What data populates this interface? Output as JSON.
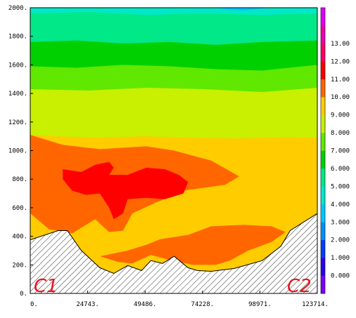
{
  "chart_data": {
    "type": "heatmap",
    "title": "",
    "xlabel": "",
    "ylabel": "",
    "x_ticks": [
      "0.",
      "24743.",
      "49486.",
      "74228.",
      "98971.",
      "123714."
    ],
    "y_ticks": [
      "0.",
      "200.",
      "400.",
      "600.",
      "800.",
      "1000.",
      "1200.",
      "1400.",
      "1600.",
      "1800.",
      "2000."
    ],
    "xlim": [
      0,
      123714
    ],
    "ylim": [
      0,
      2000
    ],
    "colorbar": {
      "labels": [
        "0.000",
        "1.000",
        "2.000",
        "3.000",
        "4.000",
        "5.000",
        "6.000",
        "7.000",
        "8.000",
        "9.000",
        "10.00",
        "11.00",
        "12.00",
        "13.00"
      ],
      "colors": [
        "#7b00ff",
        "#2a00f0",
        "#0040ff",
        "#0090ff",
        "#00c8ff",
        "#00e8c8",
        "#00e888",
        "#00d000",
        "#60e800",
        "#c8f000",
        "#ffcc00",
        "#ff6600",
        "#ff0000",
        "#ff0066",
        "#ee00aa",
        "#e000ff"
      ]
    },
    "contour_levels": [
      {
        "level": 9,
        "upper": [
          [
            0,
            1110
          ],
          [
            10000,
            1100
          ],
          [
            30000,
            1092
          ],
          [
            50000,
            1100
          ],
          [
            70000,
            1090
          ],
          [
            90000,
            1085
          ],
          [
            110000,
            1095
          ],
          [
            123714,
            1090
          ]
        ],
        "lower": [
          [
            0,
            375
          ],
          [
            12000,
            440
          ],
          [
            16000,
            440
          ],
          [
            22000,
            300
          ],
          [
            30000,
            180
          ],
          [
            36000,
            140
          ],
          [
            42000,
            195
          ],
          [
            48000,
            160
          ],
          [
            52000,
            230
          ],
          [
            57000,
            210
          ],
          [
            62000,
            260
          ],
          [
            68000,
            180
          ],
          [
            72000,
            160
          ],
          [
            78000,
            155
          ],
          [
            88000,
            175
          ],
          [
            100000,
            230
          ],
          [
            108000,
            330
          ],
          [
            112000,
            440
          ],
          [
            123714,
            560
          ]
        ]
      },
      {
        "level": 10,
        "blobs": [
          [
            [
              0,
              1110
            ],
            [
              14000,
              1040
            ],
            [
              30000,
              1010
            ],
            [
              50000,
              1030
            ],
            [
              62000,
              1000
            ],
            [
              78000,
              930
            ],
            [
              90000,
              820
            ],
            [
              84000,
              760
            ],
            [
              66000,
              720
            ],
            [
              52000,
              620
            ],
            [
              44000,
              560
            ],
            [
              40000,
              440
            ],
            [
              34000,
              430
            ],
            [
              28000,
              520
            ],
            [
              18000,
              420
            ],
            [
              8000,
              450
            ],
            [
              0,
              560
            ]
          ],
          [
            [
              30000,
              260
            ],
            [
              42000,
              300
            ],
            [
              50000,
              340
            ],
            [
              56000,
              380
            ],
            [
              68000,
              410
            ],
            [
              78000,
              470
            ],
            [
              92000,
              480
            ],
            [
              104000,
              470
            ],
            [
              110000,
              430
            ],
            [
              104000,
              360
            ],
            [
              94000,
              300
            ],
            [
              86000,
              230
            ],
            [
              80000,
              200
            ],
            [
              70000,
              200
            ],
            [
              60000,
              235
            ],
            [
              52000,
              270
            ],
            [
              44000,
              210
            ],
            [
              38000,
              220
            ]
          ]
        ]
      },
      {
        "level": 11,
        "blobs": [
          [
            [
              14000,
              870
            ],
            [
              22000,
              850
            ],
            [
              28000,
              900
            ],
            [
              34000,
              920
            ],
            [
              36000,
              880
            ],
            [
              34000,
              830
            ],
            [
              42000,
              830
            ],
            [
              50000,
              880
            ],
            [
              58000,
              870
            ],
            [
              64000,
              830
            ],
            [
              68000,
              780
            ],
            [
              66000,
              700
            ],
            [
              58000,
              660
            ],
            [
              50000,
              670
            ],
            [
              42000,
              660
            ],
            [
              40000,
              560
            ],
            [
              36000,
              520
            ],
            [
              34000,
              600
            ],
            [
              30000,
              700
            ],
            [
              24000,
              690
            ],
            [
              18000,
              720
            ],
            [
              14000,
              800
            ]
          ]
        ]
      }
    ],
    "upper_bands": [
      {
        "level": 8,
        "top": [
          [
            0,
            1280
          ],
          [
            20000,
            1270
          ],
          [
            40000,
            1290
          ],
          [
            60000,
            1280
          ],
          [
            80000,
            1270
          ],
          [
            100000,
            1280
          ],
          [
            123714,
            1260
          ]
        ]
      },
      {
        "level": 7,
        "top": [
          [
            0,
            1430
          ],
          [
            25000,
            1420
          ],
          [
            50000,
            1440
          ],
          [
            75000,
            1430
          ],
          [
            100000,
            1410
          ],
          [
            123714,
            1440
          ]
        ]
      },
      {
        "level": 6,
        "top": [
          [
            0,
            1590
          ],
          [
            20000,
            1580
          ],
          [
            40000,
            1600
          ],
          [
            60000,
            1590
          ],
          [
            80000,
            1570
          ],
          [
            100000,
            1560
          ],
          [
            123714,
            1600
          ]
        ]
      },
      {
        "level": 5,
        "top": [
          [
            0,
            1760
          ],
          [
            20000,
            1770
          ],
          [
            40000,
            1750
          ],
          [
            60000,
            1760
          ],
          [
            80000,
            1740
          ],
          [
            100000,
            1760
          ],
          [
            123714,
            1770
          ]
        ]
      },
      {
        "level": 4,
        "top": [
          [
            0,
            1960
          ],
          [
            25000,
            1970
          ],
          [
            50000,
            1950
          ],
          [
            75000,
            1960
          ],
          [
            100000,
            1950
          ],
          [
            123714,
            1960
          ]
        ]
      },
      {
        "level": 3,
        "top": [
          [
            80000,
            2000
          ],
          [
            86000,
            1985
          ],
          [
            92000,
            1980
          ],
          [
            98000,
            1990
          ],
          [
            102000,
            2000
          ]
        ]
      }
    ],
    "terrain": [
      [
        0,
        375
      ],
      [
        12000,
        440
      ],
      [
        16000,
        440
      ],
      [
        22000,
        300
      ],
      [
        30000,
        180
      ],
      [
        36000,
        140
      ],
      [
        42000,
        195
      ],
      [
        48000,
        160
      ],
      [
        52000,
        230
      ],
      [
        57000,
        210
      ],
      [
        62000,
        260
      ],
      [
        68000,
        180
      ],
      [
        72000,
        160
      ],
      [
        78000,
        155
      ],
      [
        88000,
        175
      ],
      [
        100000,
        230
      ],
      [
        108000,
        330
      ],
      [
        112000,
        440
      ],
      [
        123714,
        560
      ]
    ],
    "corner_labels": {
      "left": "C1",
      "right": "C2"
    }
  }
}
